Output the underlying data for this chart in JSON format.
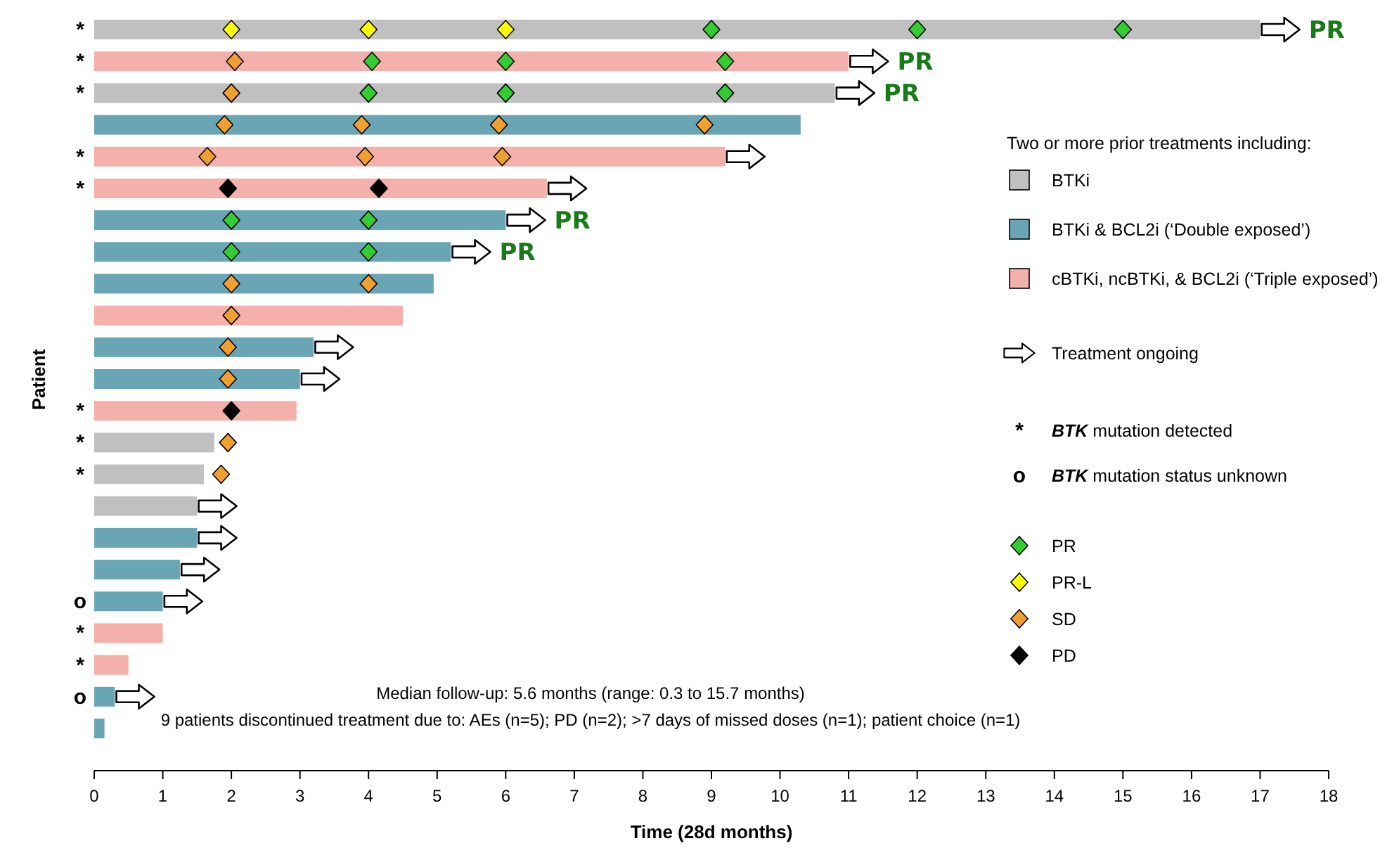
{
  "chart_data": {
    "type": "bar",
    "orientation": "horizontal",
    "xlabel": "Time (28d months)",
    "ylabel": "Patient",
    "legend_title": "Two or more prior treatments including:",
    "legend": "right",
    "grid": false,
    "categories": [
      "*",
      "*",
      "*",
      null,
      "*",
      "*",
      null,
      null,
      null,
      null,
      null,
      null,
      "*",
      "*",
      "*",
      null,
      null,
      null,
      "o",
      "*",
      "*",
      "o",
      null
    ],
    "xlim": [
      0,
      18
    ],
    "xticks": [
      0,
      1,
      2,
      3,
      4,
      5,
      6,
      7,
      8,
      9,
      10,
      11,
      12,
      13,
      14,
      15,
      16,
      17,
      18
    ],
    "series": [
      {
        "name": "BTKi",
        "color": "#c0c0c0",
        "values": [
          17.0,
          null,
          10.8,
          null,
          null,
          null,
          null,
          null,
          null,
          null,
          null,
          null,
          null,
          1.75,
          1.6,
          1.5,
          null,
          null,
          null,
          null,
          null,
          null,
          null
        ]
      },
      {
        "name": "BTKi & BCL2i (‘Double exposed’)",
        "color": "#6aa5b5",
        "values": [
          null,
          null,
          null,
          10.3,
          null,
          null,
          6.0,
          5.2,
          4.95,
          null,
          3.2,
          3.0,
          null,
          null,
          null,
          null,
          1.5,
          1.25,
          1.0,
          null,
          null,
          0.3,
          0.15
        ]
      },
      {
        "name": "cBTKi, ncBTKi, & BCL2i (‘Triple exposed’)",
        "color": "#f4b0aa",
        "values": [
          null,
          11.0,
          null,
          null,
          9.2,
          6.6,
          null,
          null,
          null,
          4.5,
          null,
          null,
          2.95,
          null,
          null,
          null,
          null,
          null,
          null,
          1.0,
          0.5,
          null,
          null
        ]
      },
      {
        "type": "scatter",
        "name": "Treatment ongoing",
        "color": "#ffffff",
        "values": [
          17.3,
          11.3,
          11.1,
          null,
          9.5,
          6.9,
          6.3,
          5.5,
          null,
          null,
          3.5,
          3.3,
          null,
          null,
          null,
          1.8,
          1.8,
          1.55,
          1.3,
          null,
          null,
          0.6,
          null
        ],
        "value_labels": [
          "PR",
          "PR",
          "PR",
          null,
          null,
          null,
          "PR",
          "PR",
          null,
          null,
          null,
          null,
          null,
          null,
          null,
          null,
          null,
          null,
          null,
          null,
          null,
          null,
          null
        ]
      },
      {
        "type": "scatter",
        "name": "PR",
        "marker": "diamond",
        "color": "#33cc33",
        "values": [
          9,
          4.05,
          4,
          null,
          null,
          null,
          2,
          2,
          null,
          null,
          null,
          null,
          null,
          null,
          null,
          null,
          null,
          null,
          null,
          null,
          null,
          null,
          null
        ]
      },
      {
        "type": "scatter",
        "marker": "diamond",
        "color": "#33cc33",
        "values": [
          12,
          6,
          6,
          null,
          null,
          null,
          4,
          4,
          null,
          null,
          null,
          null,
          null,
          null,
          null,
          null,
          null,
          null,
          null,
          null,
          null,
          null,
          null
        ]
      },
      {
        "type": "scatter",
        "marker": "diamond",
        "color": "#33cc33",
        "values": [
          15,
          9.2,
          9.2,
          null,
          null,
          null,
          null,
          null,
          null,
          null,
          null,
          null,
          null,
          null,
          null,
          null,
          null,
          null,
          null,
          null,
          null,
          null,
          null
        ]
      },
      {
        "type": "scatter",
        "name": "PR-L",
        "marker": "diamond",
        "color": "#ffff00",
        "values": [
          2,
          null,
          null,
          null,
          null,
          null,
          null,
          null,
          null,
          null,
          null,
          null,
          null,
          null,
          null,
          null,
          null,
          null,
          null,
          null,
          null,
          null,
          null
        ]
      },
      {
        "type": "scatter",
        "marker": "diamond",
        "color": "#ffff00",
        "values": [
          4,
          null,
          null,
          null,
          null,
          null,
          null,
          null,
          null,
          null,
          null,
          null,
          null,
          null,
          null,
          null,
          null,
          null,
          null,
          null,
          null,
          null,
          null
        ]
      },
      {
        "type": "scatter",
        "marker": "diamond",
        "color": "#ffff00",
        "values": [
          6,
          null,
          null,
          null,
          null,
          null,
          null,
          null,
          null,
          null,
          null,
          null,
          null,
          null,
          null,
          null,
          null,
          null,
          null,
          null,
          null,
          null,
          null
        ]
      },
      {
        "type": "scatter",
        "name": "SD",
        "marker": "diamond",
        "color": "#f0a030",
        "values": [
          null,
          2.05,
          2,
          1.9,
          1.65,
          null,
          null,
          null,
          2,
          2,
          1.95,
          1.95,
          null,
          1.95,
          1.85,
          null,
          null,
          null,
          null,
          null,
          null,
          null,
          null
        ]
      },
      {
        "type": "scatter",
        "marker": "diamond",
        "color": "#f0a030",
        "values": [
          null,
          null,
          null,
          3.9,
          3.95,
          null,
          null,
          null,
          4,
          null,
          null,
          null,
          null,
          null,
          null,
          null,
          null,
          null,
          null,
          null,
          null,
          null,
          null
        ]
      },
      {
        "type": "scatter",
        "marker": "diamond",
        "color": "#f0a030",
        "values": [
          null,
          null,
          null,
          5.9,
          5.95,
          null,
          null,
          null,
          null,
          null,
          null,
          null,
          null,
          null,
          null,
          null,
          null,
          null,
          null,
          null,
          null,
          null,
          null
        ]
      },
      {
        "type": "scatter",
        "marker": "diamond",
        "color": "#f0a030",
        "values": [
          null,
          null,
          null,
          8.9,
          null,
          null,
          null,
          null,
          null,
          null,
          null,
          null,
          null,
          null,
          null,
          null,
          null,
          null,
          null,
          null,
          null,
          null,
          null
        ]
      },
      {
        "type": "scatter",
        "name": "PD",
        "marker": "diamond",
        "color": "#000000",
        "values": [
          null,
          null,
          null,
          null,
          null,
          1.95,
          null,
          null,
          null,
          null,
          null,
          null,
          2,
          null,
          null,
          null,
          null,
          null,
          null,
          null,
          null,
          null,
          null
        ]
      },
      {
        "type": "scatter",
        "marker": "diamond",
        "color": "#000000",
        "values": [
          null,
          null,
          null,
          null,
          null,
          4.15,
          null,
          null,
          null,
          null,
          null,
          null,
          null,
          null,
          null,
          null,
          null,
          null,
          null,
          null,
          null,
          null,
          null
        ]
      }
    ],
    "annotations": [
      "* BTK mutation detected",
      "o BTK mutation status unknown",
      "Median follow-up: 5.6 months (range: 0.3 to 15.7 months)",
      "9 patients discontinued treatment due to: AEs (n=5); PD (n=2); >7 days of missed doses (n=1); patient choice (n=1)"
    ]
  }
}
